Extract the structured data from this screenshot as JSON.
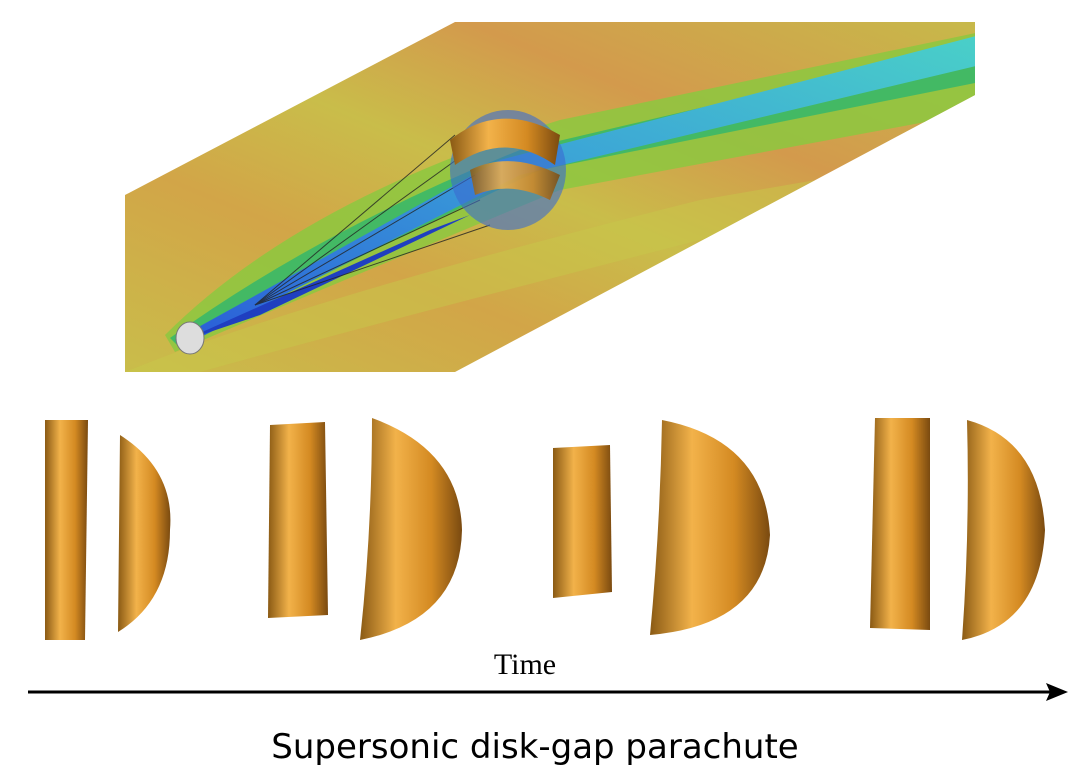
{
  "figure": {
    "axis_label": "Time",
    "caption": "Supersonic disk-gap parachute"
  }
}
